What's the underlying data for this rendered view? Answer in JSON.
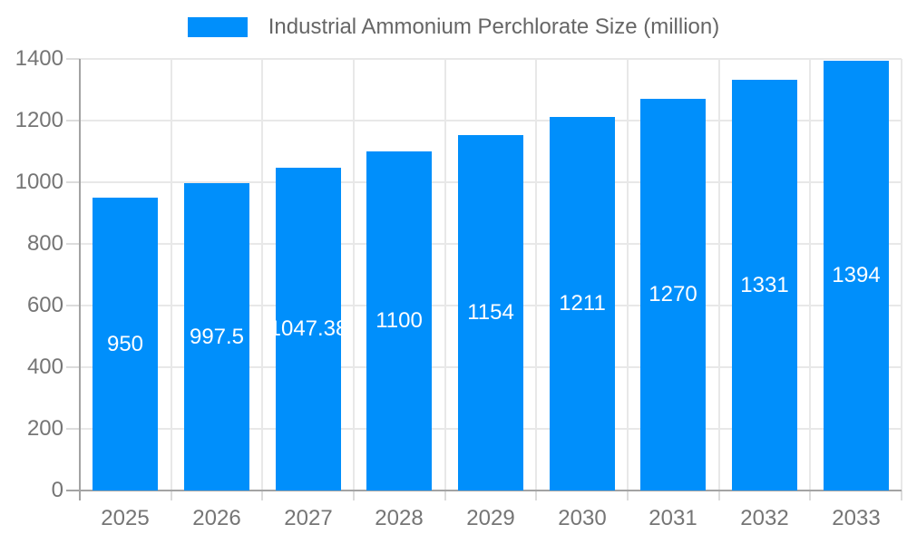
{
  "legend": {
    "label": "Industrial Ammonium Perchlorate Size (million)"
  },
  "chart_data": {
    "type": "bar",
    "title": "",
    "xlabel": "",
    "ylabel": "",
    "series_name": "Industrial Ammonium Perchlorate Size (million)",
    "categories": [
      "2025",
      "2026",
      "2027",
      "2028",
      "2029",
      "2030",
      "2031",
      "2032",
      "2033"
    ],
    "values": [
      950,
      997.5,
      1047.38,
      1100,
      1154,
      1211,
      1270,
      1331,
      1394
    ],
    "value_labels": [
      "950",
      "997.5",
      "1047.38",
      "1100",
      "1154",
      "1211",
      "1270",
      "1331",
      "1394"
    ],
    "ylim": [
      0,
      1400
    ],
    "ytick_step": 200,
    "yticks": [
      0,
      200,
      400,
      600,
      800,
      1000,
      1200,
      1400
    ],
    "grid": true,
    "legend_position": "top",
    "data_labels": "inside-center"
  },
  "colors": {
    "bar": "#008FFB",
    "grid": "#e8e8e8",
    "axis": "#a3a3a3",
    "tick": "#dcdcdc",
    "tick_label": "#757575",
    "legend_text": "#666666",
    "data_label": "#ffffff",
    "background": "#ffffff"
  }
}
